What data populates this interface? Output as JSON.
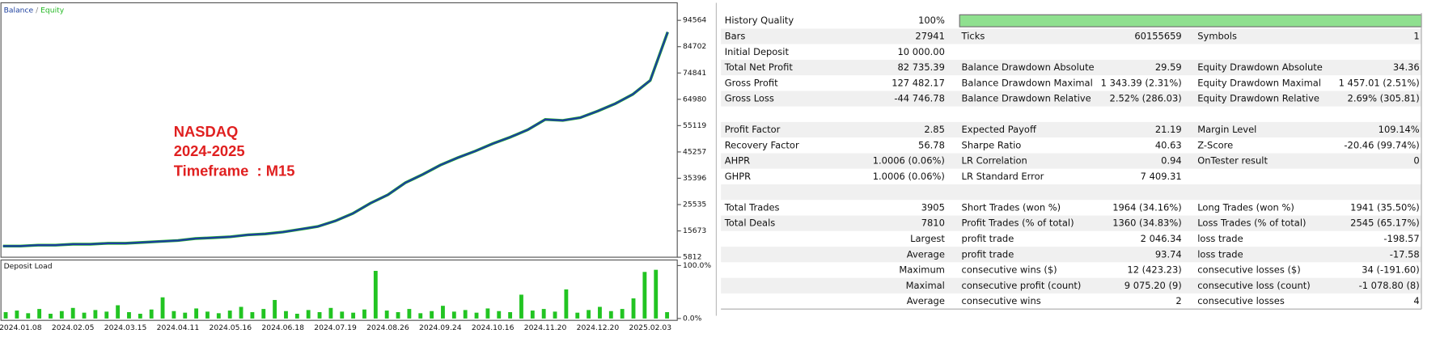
{
  "chart_data": [
    {
      "type": "line",
      "legend_separator": "/",
      "annotations": [
        "NASDAQ",
        "2024-2025",
        "Timeframe  : M15"
      ],
      "categories": [
        null,
        "2024.01.08",
        null,
        null,
        "2024.02.05",
        null,
        null,
        "2024.03.15",
        null,
        null,
        "2024.04.11",
        null,
        null,
        "2024.05.16",
        null,
        null,
        "2024.06.18",
        null,
        null,
        "2024.07.19",
        null,
        null,
        "2024.08.26",
        null,
        null,
        "2024.09.24",
        null,
        null,
        "2024.10.16",
        null,
        null,
        "2024.11.20",
        null,
        null,
        "2024.12.20",
        null,
        null,
        "2025.02.03",
        null
      ],
      "series": [
        {
          "name": "Equity",
          "color": "#22b822",
          "values": [
            10000,
            10000,
            10350,
            10350,
            10700,
            10700,
            11040,
            11040,
            11390,
            11740,
            12090,
            12790,
            13130,
            13480,
            14180,
            14530,
            15230,
            16270,
            17320,
            19410,
            22200,
            26040,
            29180,
            33710,
            36850,
            40330,
            43120,
            45570,
            48350,
            50800,
            53580,
            57420,
            57070,
            58120,
            60560,
            63350,
            66830,
            72070,
            90200
          ]
        },
        {
          "name": "Balance",
          "color": "#1c3f9e",
          "values": [
            10000,
            10000,
            10350,
            10350,
            10700,
            10700,
            11040,
            11040,
            11390,
            11740,
            12090,
            12790,
            13130,
            13480,
            14180,
            14530,
            15230,
            16270,
            17320,
            19410,
            22200,
            26040,
            29180,
            33710,
            36850,
            40330,
            43120,
            45570,
            48350,
            50800,
            53580,
            57420,
            57070,
            58120,
            60560,
            63350,
            66830,
            72070,
            90200
          ]
        }
      ],
      "ylim": [
        5812,
        100450
      ],
      "yticks": [
        5812,
        15673,
        25535,
        35396,
        45257,
        55119,
        64980,
        74841,
        84702,
        94564
      ]
    },
    {
      "type": "bar",
      "title": "Deposit Load",
      "color": "#22c422",
      "values": [
        12,
        15,
        10,
        18,
        9,
        14,
        20,
        11,
        16,
        13,
        25,
        12,
        9,
        17,
        40,
        14,
        11,
        19,
        13,
        10,
        15,
        22,
        12,
        18,
        35,
        14,
        9,
        16,
        12,
        20,
        13,
        11,
        17,
        90,
        15,
        12,
        18,
        10,
        14,
        24,
        13,
        16,
        11,
        19,
        14,
        12,
        45,
        15,
        18,
        13,
        55,
        11,
        16,
        22,
        14,
        18,
        38,
        88,
        92,
        12
      ],
      "ylim": [
        0,
        100
      ],
      "yticks": [
        {
          "value": 100,
          "label": "100.0%"
        },
        {
          "value": 0,
          "label": "0.0%"
        }
      ]
    }
  ],
  "report": {
    "history_quality_bar": 100,
    "rows": [
      [
        "History Quality",
        "100%"
      ],
      [
        "Bars",
        "27941",
        "Ticks",
        "60155659",
        "Symbols",
        "1"
      ],
      [
        "Initial Deposit",
        "10 000.00"
      ],
      [
        "Total Net Profit",
        "82 735.39",
        "Balance Drawdown Absolute",
        "29.59",
        "Equity Drawdown Absolute",
        "34.36"
      ],
      [
        "Gross Profit",
        "127 482.17",
        "Balance Drawdown Maximal",
        "1 343.39 (2.31%)",
        "Equity Drawdown Maximal",
        "1 457.01 (2.51%)"
      ],
      [
        "Gross Loss",
        "-44 746.78",
        "Balance Drawdown Relative",
        "2.52% (286.03)",
        "Equity Drawdown Relative",
        "2.69% (305.81)"
      ],
      [],
      [
        "Profit Factor",
        "2.85",
        "Expected Payoff",
        "21.19",
        "Margin Level",
        "109.14%"
      ],
      [
        "Recovery Factor",
        "56.78",
        "Sharpe Ratio",
        "40.63",
        "Z-Score",
        "-20.46 (99.74%)"
      ],
      [
        "AHPR",
        "1.0006 (0.06%)",
        "LR Correlation",
        "0.94",
        "OnTester result",
        "0"
      ],
      [
        "GHPR",
        "1.0006 (0.06%)",
        "LR Standard Error",
        "7 409.31"
      ],
      [],
      [
        "Total Trades",
        "3905",
        "Short Trades (won %)",
        "1964 (34.16%)",
        "Long Trades (won %)",
        "1941 (35.50%)"
      ],
      [
        "Total Deals",
        "7810",
        "Profit Trades (% of total)",
        "1360 (34.83%)",
        "Loss Trades (% of total)",
        "2545 (65.17%)"
      ],
      [
        null,
        "Largest",
        "profit trade",
        "2 046.34",
        "loss trade",
        "-198.57"
      ],
      [
        null,
        "Average",
        "profit trade",
        "93.74",
        "loss trade",
        "-17.58"
      ],
      [
        null,
        "Maximum",
        "consecutive wins ($)",
        "12 (423.23)",
        "consecutive losses ($)",
        "34 (-191.60)"
      ],
      [
        null,
        "Maximal",
        "consecutive profit (count)",
        "9 075.20 (9)",
        "consecutive loss (count)",
        "-1 078.80 (8)"
      ],
      [
        null,
        "Average",
        "consecutive wins",
        "2",
        "consecutive losses",
        "4"
      ]
    ]
  }
}
